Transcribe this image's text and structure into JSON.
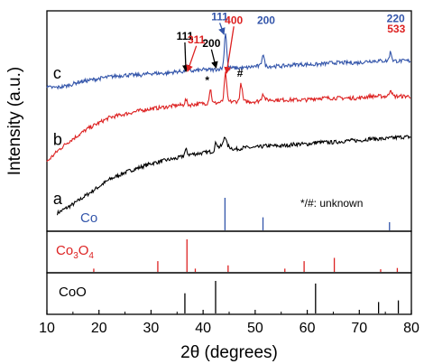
{
  "chart_data": {
    "type": "line",
    "xlabel": "2θ (degrees)",
    "ylabel": "Intensity (a.u.)",
    "xlim": [
      10,
      80
    ],
    "xticks": [
      10,
      20,
      30,
      40,
      50,
      60,
      70,
      80
    ],
    "xtick_labels": [
      "10",
      "20",
      "30",
      "40",
      "50",
      "60",
      "70",
      "80"
    ],
    "series": [
      {
        "name": "a",
        "color": "#000000",
        "x": [
          12,
          15,
          18,
          20,
          22,
          25,
          28,
          30,
          33,
          35,
          37,
          40,
          42,
          44,
          46,
          48,
          50,
          52,
          55,
          58,
          60,
          62,
          65,
          68,
          70,
          72,
          75,
          78,
          80
        ],
        "y": [
          0.0,
          0.05,
          0.11,
          0.15,
          0.19,
          0.23,
          0.26,
          0.28,
          0.3,
          0.31,
          0.33,
          0.34,
          0.35,
          0.39,
          0.36,
          0.37,
          0.37,
          0.38,
          0.38,
          0.39,
          0.39,
          0.4,
          0.4,
          0.41,
          0.41,
          0.42,
          0.42,
          0.43,
          0.43
        ],
        "peaks": [
          {
            "x": 36.7,
            "h": 0.03
          },
          {
            "x": 42.5,
            "h": 0.04
          },
          {
            "x": 44.2,
            "h": 0.05
          }
        ]
      },
      {
        "name": "b",
        "color": "#dd2222",
        "x": [
          10,
          12,
          14,
          16,
          18,
          20,
          22,
          25,
          28,
          30,
          33,
          35,
          37,
          40,
          42,
          44,
          46,
          48,
          50,
          52,
          55,
          58,
          60,
          62,
          65,
          68,
          70,
          72,
          75,
          78,
          80
        ],
        "y": [
          0.29,
          0.35,
          0.4,
          0.44,
          0.48,
          0.51,
          0.54,
          0.56,
          0.58,
          0.59,
          0.6,
          0.61,
          0.61,
          0.62,
          0.62,
          0.63,
          0.63,
          0.63,
          0.63,
          0.64,
          0.64,
          0.64,
          0.64,
          0.65,
          0.65,
          0.65,
          0.65,
          0.66,
          0.66,
          0.66,
          0.66
        ],
        "peaks": [
          {
            "x": 36.7,
            "h": 0.03
          },
          {
            "x": 41.4,
            "h": 0.08
          },
          {
            "x": 44.3,
            "h": 0.16
          },
          {
            "x": 47.3,
            "h": 0.1
          },
          {
            "x": 51.5,
            "h": 0.04
          },
          {
            "x": 76.0,
            "h": 0.04
          }
        ]
      },
      {
        "name": "c",
        "color": "#3355aa",
        "x": [
          10,
          12,
          14,
          16,
          18,
          20,
          22,
          25,
          28,
          30,
          33,
          35,
          37,
          40,
          42,
          44,
          46,
          48,
          50,
          52,
          55,
          58,
          60,
          62,
          65,
          68,
          70,
          72,
          75,
          78,
          80
        ],
        "y": [
          0.71,
          0.71,
          0.72,
          0.74,
          0.75,
          0.76,
          0.77,
          0.78,
          0.78,
          0.79,
          0.79,
          0.8,
          0.8,
          0.81,
          0.81,
          0.82,
          0.82,
          0.82,
          0.83,
          0.83,
          0.83,
          0.84,
          0.84,
          0.84,
          0.85,
          0.85,
          0.85,
          0.86,
          0.86,
          0.86,
          0.86
        ],
        "peaks": [
          {
            "x": 36.9,
            "h": 0.03
          },
          {
            "x": 44.3,
            "h": 0.2
          },
          {
            "x": 51.5,
            "h": 0.07
          },
          {
            "x": 76.0,
            "h": 0.05
          }
        ]
      }
    ],
    "curve_labels": [
      {
        "text": "a",
        "series": "a"
      },
      {
        "text": "b",
        "series": "b"
      },
      {
        "text": "c",
        "series": "c"
      }
    ],
    "peak_labels": [
      {
        "text": "111",
        "color": "#000000",
        "x": 36.5,
        "y": 0.98,
        "arrow_to": [
          36.7,
          0.8
        ]
      },
      {
        "text": "311",
        "color": "#dd2222",
        "x": 38.7,
        "y": 0.96,
        "arrow_to": [
          37.0,
          0.8
        ]
      },
      {
        "text": "200",
        "color": "#000000",
        "x": 41.6,
        "y": 0.94,
        "arrow_to": [
          42.5,
          0.82
        ]
      },
      {
        "text": "111",
        "color": "#3355aa",
        "x": 43.2,
        "y": 1.09,
        "arrow_to": [
          44.0,
          1.01
        ]
      },
      {
        "text": "400",
        "color": "#dd2222",
        "x": 45.9,
        "y": 1.07,
        "arrow_to": [
          44.5,
          0.79
        ]
      },
      {
        "text": "200",
        "color": "#3355aa",
        "x": 52.1,
        "y": 1.07
      },
      {
        "text": "220",
        "color": "#3355aa",
        "x": 77.0,
        "y": 1.08
      },
      {
        "text": "533",
        "color": "#dd2222",
        "x": 77.1,
        "y": 1.02
      },
      {
        "text": "*",
        "color": "#000000",
        "x": 40.8,
        "y": 0.73
      },
      {
        "text": "#",
        "color": "#000000",
        "x": 47.1,
        "y": 0.77
      }
    ],
    "note": "*/#: unknown",
    "references": [
      {
        "name": "Co",
        "color": "#3355aa",
        "peaks": [
          {
            "x": 44.2,
            "i": 1.0
          },
          {
            "x": 51.5,
            "i": 0.4
          },
          {
            "x": 75.8,
            "i": 0.25
          }
        ]
      },
      {
        "name": "Co3O4",
        "label_main": "Co",
        "label_sub1": "3",
        "label_mid": "O",
        "label_sub2": "4",
        "color": "#dd2222",
        "peaks": [
          {
            "x": 19.0,
            "i": 0.1
          },
          {
            "x": 31.3,
            "i": 0.33
          },
          {
            "x": 36.9,
            "i": 1.0
          },
          {
            "x": 38.5,
            "i": 0.1
          },
          {
            "x": 44.8,
            "i": 0.2
          },
          {
            "x": 55.7,
            "i": 0.1
          },
          {
            "x": 59.4,
            "i": 0.33
          },
          {
            "x": 65.2,
            "i": 0.43
          },
          {
            "x": 74.1,
            "i": 0.08
          },
          {
            "x": 77.3,
            "i": 0.12
          }
        ]
      },
      {
        "name": "CoO",
        "color": "#000000",
        "peaks": [
          {
            "x": 36.5,
            "i": 0.62
          },
          {
            "x": 42.4,
            "i": 1.0
          },
          {
            "x": 61.6,
            "i": 0.92
          },
          {
            "x": 73.7,
            "i": 0.35
          },
          {
            "x": 77.5,
            "i": 0.4
          }
        ]
      }
    ]
  }
}
